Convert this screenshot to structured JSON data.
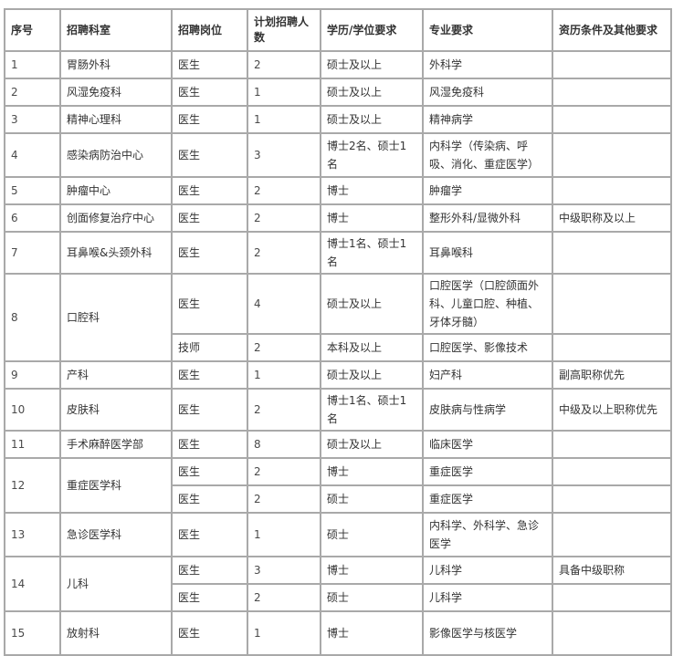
{
  "table": {
    "headers": [
      "序号",
      "招聘科室",
      "招聘岗位",
      "计划招聘人数",
      "学历/学位要求",
      "专业要求",
      "资历条件及其他要求"
    ],
    "rows": [
      {
        "no": "1",
        "dept": "胃肠外科",
        "posts": [
          {
            "role": "医生",
            "count": "2",
            "edu": "硕士及以上",
            "major": "外科学",
            "other": ""
          }
        ]
      },
      {
        "no": "2",
        "dept": "风湿免疫科",
        "posts": [
          {
            "role": "医生",
            "count": "1",
            "edu": "硕士及以上",
            "major": "风湿免疫科",
            "other": ""
          }
        ]
      },
      {
        "no": "3",
        "dept": "精神心理科",
        "posts": [
          {
            "role": "医生",
            "count": "1",
            "edu": "硕士及以上",
            "major": "精神病学",
            "other": ""
          }
        ]
      },
      {
        "no": "4",
        "dept": "感染病防治中心",
        "posts": [
          {
            "role": "医生",
            "count": "3",
            "edu": "博士2名、硕士1名",
            "major": "内科学（传染病、呼吸、消化、重症医学）",
            "other": "",
            "h": "tall"
          }
        ]
      },
      {
        "no": "5",
        "dept": "肿瘤中心",
        "posts": [
          {
            "role": "医生",
            "count": "2",
            "edu": "博士",
            "major": "肿瘤学",
            "other": ""
          }
        ]
      },
      {
        "no": "6",
        "dept": "创面修复治疗中心",
        "posts": [
          {
            "role": "医生",
            "count": "2",
            "edu": "博士",
            "major": "整形外科/显微外科",
            "other": "中级职称及以上"
          }
        ]
      },
      {
        "no": "7",
        "dept": "耳鼻喉&头颈外科",
        "posts": [
          {
            "role": "医生",
            "count": "2",
            "edu": "博士1名、硕士1名",
            "major": "耳鼻喉科",
            "other": ""
          }
        ]
      },
      {
        "no": "8",
        "dept": "口腔科",
        "posts": [
          {
            "role": "医生",
            "count": "4",
            "edu": "硕士及以上",
            "major": "口腔医学（口腔颌面外科、儿童口腔、种植、牙体牙髓）",
            "other": "",
            "h": "xtall"
          },
          {
            "role": "技师",
            "count": "2",
            "edu": "本科及以上",
            "major": "口腔医学、影像技术",
            "other": ""
          }
        ]
      },
      {
        "no": "9",
        "dept": "产科",
        "posts": [
          {
            "role": "医生",
            "count": "1",
            "edu": "硕士及以上",
            "major": "妇产科",
            "other": "副高职称优先"
          }
        ]
      },
      {
        "no": "10",
        "dept": "皮肤科",
        "posts": [
          {
            "role": "医生",
            "count": "2",
            "edu": "博士1名、硕士1名",
            "major": "皮肤病与性病学",
            "other": "中级及以上职称优先"
          }
        ]
      },
      {
        "no": "11",
        "dept": "手术麻醉医学部",
        "posts": [
          {
            "role": "医生",
            "count": "8",
            "edu": "硕士及以上",
            "major": "临床医学",
            "other": ""
          }
        ]
      },
      {
        "no": "12",
        "dept": "重症医学科",
        "posts": [
          {
            "role": "医生",
            "count": "2",
            "edu": "博士",
            "major": "重症医学",
            "other": ""
          },
          {
            "role": "医生",
            "count": "2",
            "edu": "硕士",
            "major": "重症医学",
            "other": ""
          }
        ]
      },
      {
        "no": "13",
        "dept": "急诊医学科",
        "posts": [
          {
            "role": "医生",
            "count": "1",
            "edu": "硕士",
            "major": "内科学、外科学、急诊医学",
            "other": "",
            "h": "tall"
          }
        ]
      },
      {
        "no": "14",
        "dept": "儿科",
        "posts": [
          {
            "role": "医生",
            "count": "3",
            "edu": "博士",
            "major": "儿科学",
            "other": "具备中级职称"
          },
          {
            "role": "医生",
            "count": "2",
            "edu": "硕士",
            "major": "儿科学",
            "other": ""
          }
        ]
      },
      {
        "no": "15",
        "dept": "放射科",
        "posts": [
          {
            "role": "医生",
            "count": "1",
            "edu": "博士",
            "major": "影像医学与核医学",
            "other": "",
            "h": "tall"
          }
        ]
      }
    ]
  }
}
